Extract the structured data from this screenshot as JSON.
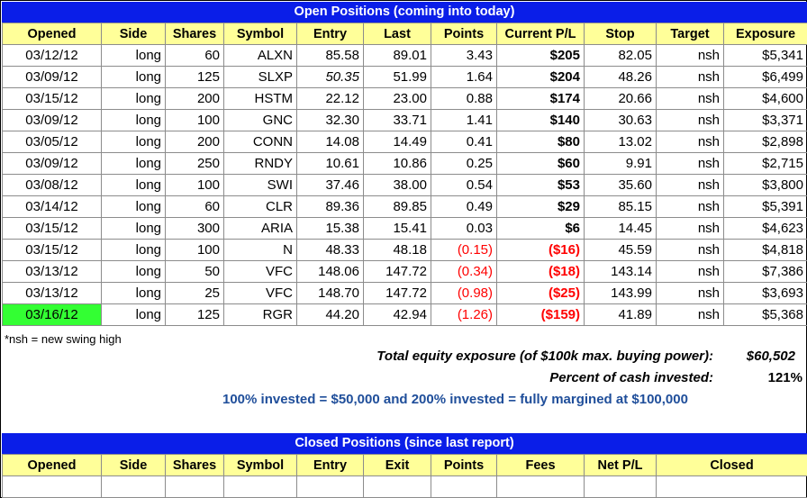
{
  "open": {
    "title": "Open Positions (coming into today)",
    "columns": [
      "Opened",
      "Side",
      "Shares",
      "Symbol",
      "Entry",
      "Last",
      "Points",
      "Current P/L",
      "Stop",
      "Target",
      "Exposure"
    ],
    "rows": [
      {
        "opened": "03/12/12",
        "side": "long",
        "shares": "60",
        "symbol": "ALXN",
        "entry": "85.58",
        "last": "89.01",
        "points": "3.43",
        "pl": "$205",
        "stop": "82.05",
        "target": "nsh",
        "exposure": "$5,341"
      },
      {
        "opened": "03/09/12",
        "side": "long",
        "shares": "125",
        "symbol": "SLXP",
        "entry": "50.35",
        "last": "51.99",
        "points": "1.64",
        "pl": "$204",
        "stop": "48.26",
        "target": "nsh",
        "exposure": "$6,499"
      },
      {
        "opened": "03/15/12",
        "side": "long",
        "shares": "200",
        "symbol": "HSTM",
        "entry": "22.12",
        "last": "23.00",
        "points": "0.88",
        "pl": "$174",
        "stop": "20.66",
        "target": "nsh",
        "exposure": "$4,600"
      },
      {
        "opened": "03/09/12",
        "side": "long",
        "shares": "100",
        "symbol": "GNC",
        "entry": "32.30",
        "last": "33.71",
        "points": "1.41",
        "pl": "$140",
        "stop": "30.63",
        "target": "nsh",
        "exposure": "$3,371"
      },
      {
        "opened": "03/05/12",
        "side": "long",
        "shares": "200",
        "symbol": "CONN",
        "entry": "14.08",
        "last": "14.49",
        "points": "0.41",
        "pl": "$80",
        "stop": "13.02",
        "target": "nsh",
        "exposure": "$2,898"
      },
      {
        "opened": "03/09/12",
        "side": "long",
        "shares": "250",
        "symbol": "RNDY",
        "entry": "10.61",
        "last": "10.86",
        "points": "0.25",
        "pl": "$60",
        "stop": "9.91",
        "target": "nsh",
        "exposure": "$2,715"
      },
      {
        "opened": "03/08/12",
        "side": "long",
        "shares": "100",
        "symbol": "SWI",
        "entry": "37.46",
        "last": "38.00",
        "points": "0.54",
        "pl": "$53",
        "stop": "35.60",
        "target": "nsh",
        "exposure": "$3,800"
      },
      {
        "opened": "03/14/12",
        "side": "long",
        "shares": "60",
        "symbol": "CLR",
        "entry": "89.36",
        "last": "89.85",
        "points": "0.49",
        "pl": "$29",
        "stop": "85.15",
        "target": "nsh",
        "exposure": "$5,391"
      },
      {
        "opened": "03/15/12",
        "side": "long",
        "shares": "300",
        "symbol": "ARIA",
        "entry": "15.38",
        "last": "15.41",
        "points": "0.03",
        "pl": "$6",
        "stop": "14.45",
        "target": "nsh",
        "exposure": "$4,623"
      },
      {
        "opened": "03/15/12",
        "side": "long",
        "shares": "100",
        "symbol": "N",
        "entry": "48.33",
        "last": "48.18",
        "points": "(0.15)",
        "pl": "($16)",
        "stop": "45.59",
        "target": "nsh",
        "exposure": "$4,818"
      },
      {
        "opened": "03/13/12",
        "side": "long",
        "shares": "50",
        "symbol": "VFC",
        "entry": "148.06",
        "last": "147.72",
        "points": "(0.34)",
        "pl": "($18)",
        "stop": "143.14",
        "target": "nsh",
        "exposure": "$7,386"
      },
      {
        "opened": "03/13/12",
        "side": "long",
        "shares": "25",
        "symbol": "VFC",
        "entry": "148.70",
        "last": "147.72",
        "points": "(0.98)",
        "pl": "($25)",
        "stop": "143.99",
        "target": "nsh",
        "exposure": "$3,693"
      },
      {
        "opened": "03/16/12",
        "side": "long",
        "shares": "125",
        "symbol": "RGR",
        "entry": "44.20",
        "last": "42.94",
        "points": "(1.26)",
        "pl": "($159)",
        "stop": "41.89",
        "target": "nsh",
        "exposure": "$5,368"
      }
    ]
  },
  "colors": {
    "banner": "#0a1ee8",
    "header": "#ffff99",
    "negative": "#ff0000",
    "highlight": "#33ff33",
    "note_blue": "#1f4e9a"
  },
  "footnote": "*nsh = new swing high",
  "summary": {
    "exposure_label": "Total equity exposure (of $100k max. buying power):",
    "exposure_value": "$60,502",
    "cash_label": "Percent of cash invested:",
    "cash_value": "121%",
    "note": "100% invested = $50,000 and 200% invested = fully margined at $100,000"
  },
  "closed": {
    "title": "Closed Positions (since last report)",
    "columns": [
      "Opened",
      "Side",
      "Shares",
      "Symbol",
      "Entry",
      "Exit",
      "Points",
      "Fees",
      "Net P/L",
      "Closed"
    ]
  }
}
